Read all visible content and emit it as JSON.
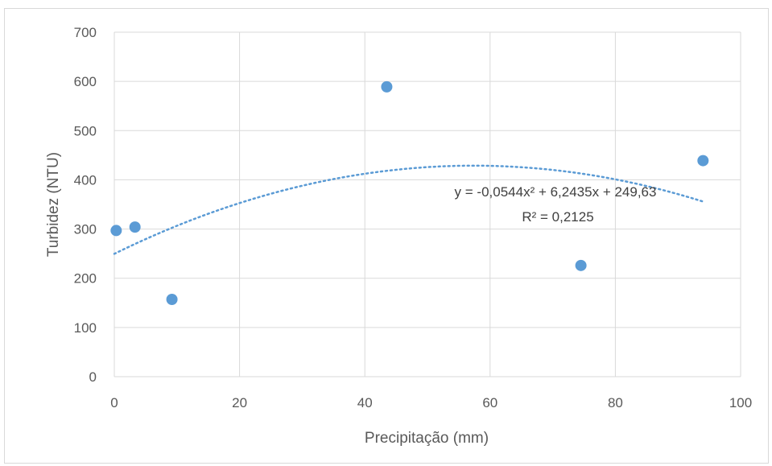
{
  "chart_data": {
    "type": "scatter",
    "xlabel": "Precipitação (mm)",
    "ylabel": "Turbidez (NTU)",
    "xlim": [
      0,
      100
    ],
    "ylim": [
      0,
      700
    ],
    "x_ticks": [
      0,
      20,
      40,
      60,
      80,
      100
    ],
    "y_ticks": [
      0,
      100,
      200,
      300,
      400,
      500,
      600,
      700
    ],
    "x_tick_labels": [
      "0",
      "20",
      "40",
      "60",
      "80",
      "100"
    ],
    "y_tick_labels": [
      "0",
      "100",
      "200",
      "300",
      "400",
      "500",
      "600",
      "700"
    ],
    "grid": true,
    "legend": "none",
    "series": [
      {
        "color": "#5b9bd5",
        "points": [
          {
            "x": 0.3,
            "y": 297
          },
          {
            "x": 3.3,
            "y": 304
          },
          {
            "x": 9.2,
            "y": 157
          },
          {
            "x": 43.5,
            "y": 589
          },
          {
            "x": 74.5,
            "y": 226
          },
          {
            "x": 94.0,
            "y": 439
          }
        ]
      }
    ],
    "trendline": {
      "type": "polynomial-2",
      "style": "dotted",
      "color": "#5b9bd5",
      "coefficients": {
        "a": -0.0544,
        "b": 6.2435,
        "c": 249.63
      },
      "x_range": [
        0,
        94
      ],
      "equation_label": "y = -0,0544x² + 6,2435x + 249,63",
      "r2_label": "R² = 0,2125"
    }
  }
}
